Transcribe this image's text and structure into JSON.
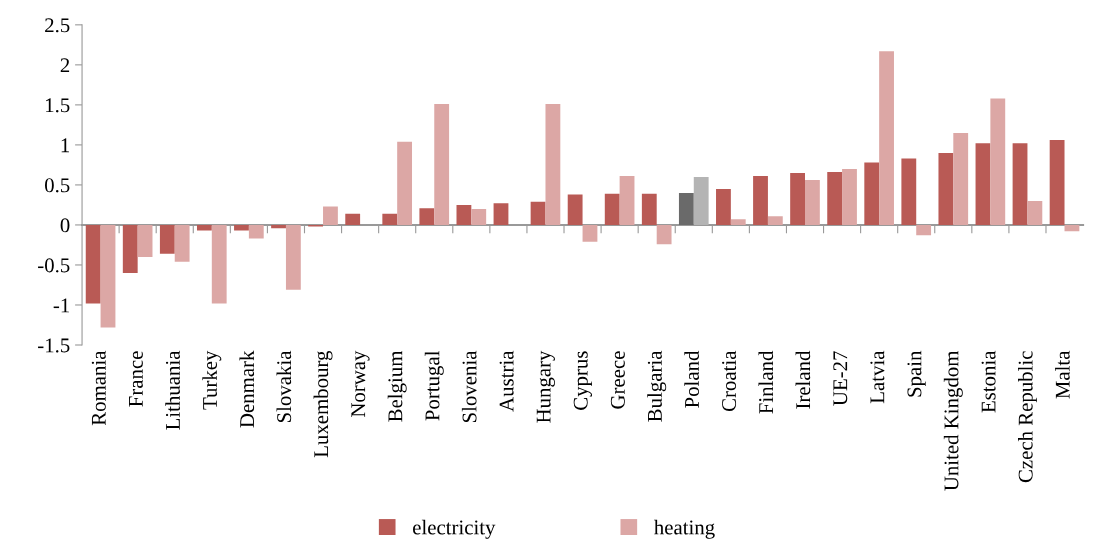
{
  "chart_data": {
    "type": "bar",
    "categories": [
      "Romania",
      "France",
      "Lithuania",
      "Turkey",
      "Denmark",
      "Slovakia",
      "Luxembourg",
      "Norway",
      "Belgium",
      "Portugal",
      "Slovenia",
      "Austria",
      "Hungary",
      "Cyprus",
      "Greece",
      "Bulgaria",
      "Poland",
      "Croatia",
      "Finland",
      "Ireland",
      "UE-27",
      "Latvia",
      "Spain",
      "United Kingdom",
      "Estonia",
      "Czech Republic",
      "Malta"
    ],
    "series": [
      {
        "name": "electricity",
        "color": "#b95a55",
        "colors": [
          "#b95a55",
          "#b95a55",
          "#b95a55",
          "#b95a55",
          "#b95a55",
          "#b95a55",
          "#b95a55",
          "#b95a55",
          "#b95a55",
          "#b95a55",
          "#b95a55",
          "#b95a55",
          "#b95a55",
          "#b95a55",
          "#b95a55",
          "#b95a55",
          "#6a6a6a",
          "#b95a55",
          "#b95a55",
          "#b95a55",
          "#b95a55",
          "#b95a55",
          "#b95a55",
          "#b95a55",
          "#b95a55",
          "#b95a55",
          "#b95a55"
        ],
        "values": [
          -0.98,
          -0.6,
          -0.36,
          -0.07,
          -0.07,
          -0.04,
          -0.02,
          0.14,
          0.14,
          0.21,
          0.25,
          0.27,
          0.29,
          0.38,
          0.39,
          0.39,
          0.4,
          0.45,
          0.61,
          0.65,
          0.66,
          0.78,
          0.83,
          0.9,
          1.02,
          1.02,
          1.06
        ]
      },
      {
        "name": "heating",
        "color": "#dca7a5",
        "colors": [
          "#dca7a5",
          "#dca7a5",
          "#dca7a5",
          "#dca7a5",
          "#dca7a5",
          "#dca7a5",
          "#dca7a5",
          "#dca7a5",
          "#dca7a5",
          "#dca7a5",
          "#dca7a5",
          "#dca7a5",
          "#dca7a5",
          "#dca7a5",
          "#dca7a5",
          "#dca7a5",
          "#b4b4b4",
          "#dca7a5",
          "#dca7a5",
          "#dca7a5",
          "#dca7a5",
          "#dca7a5",
          "#dca7a5",
          "#dca7a5",
          "#dca7a5",
          "#dca7a5",
          "#dca7a5"
        ],
        "values": [
          -1.28,
          -0.4,
          -0.46,
          -0.98,
          -0.17,
          -0.81,
          0.23,
          null,
          1.04,
          1.51,
          0.2,
          null,
          1.51,
          -0.21,
          0.61,
          -0.24,
          0.6,
          0.07,
          0.11,
          0.56,
          0.7,
          2.17,
          -0.13,
          1.15,
          1.58,
          0.3,
          -0.08
        ]
      }
    ],
    "ylim": [
      -1.5,
      2.5
    ],
    "yticks": [
      -1.5,
      -1,
      -0.5,
      0,
      0.5,
      1,
      1.5,
      2,
      2.5
    ],
    "legend": "bottom"
  }
}
